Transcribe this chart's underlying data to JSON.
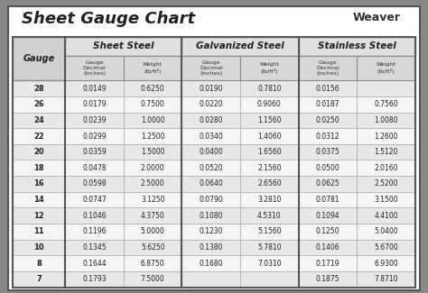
{
  "title": "Sheet Gauge Chart",
  "background_outer": "#888888",
  "background_inner": "#ffffff",
  "gauges": [
    28,
    26,
    24,
    22,
    20,
    18,
    16,
    14,
    12,
    11,
    10,
    8,
    7
  ],
  "sheet_steel": [
    [
      "0.0149",
      "0.6250"
    ],
    [
      "0.0179",
      "0.7500"
    ],
    [
      "0.0239",
      "1.0000"
    ],
    [
      "0.0299",
      "1.2500"
    ],
    [
      "0.0359",
      "1.5000"
    ],
    [
      "0.0478",
      "2.0000"
    ],
    [
      "0.0598",
      "2.5000"
    ],
    [
      "0.0747",
      "3.1250"
    ],
    [
      "0.1046",
      "4.3750"
    ],
    [
      "0.1196",
      "5.0000"
    ],
    [
      "0.1345",
      "5.6250"
    ],
    [
      "0.1644",
      "6.8750"
    ],
    [
      "0.1793",
      "7.5000"
    ]
  ],
  "galvanized_steel": [
    [
      "0.0190",
      "0.7810"
    ],
    [
      "0.0220",
      "0.9060"
    ],
    [
      "0.0280",
      "1.1560"
    ],
    [
      "0.0340",
      "1.4060"
    ],
    [
      "0.0400",
      "1.6560"
    ],
    [
      "0.0520",
      "2.1560"
    ],
    [
      "0.0640",
      "2.6560"
    ],
    [
      "0.0790",
      "3.2810"
    ],
    [
      "0.1080",
      "4.5310"
    ],
    [
      "0.1230",
      "5.1560"
    ],
    [
      "0.1380",
      "5.7810"
    ],
    [
      "0.1680",
      "7.0310"
    ],
    [
      "",
      ""
    ]
  ],
  "stainless_steel": [
    [
      "0.0156",
      ""
    ],
    [
      "0.0187",
      "0.7560"
    ],
    [
      "0.0250",
      "1.0080"
    ],
    [
      "0.0312",
      "1.2600"
    ],
    [
      "0.0375",
      "1.5120"
    ],
    [
      "0.0500",
      "2.0160"
    ],
    [
      "0.0625",
      "2.5200"
    ],
    [
      "0.0781",
      "3.1500"
    ],
    [
      "0.1094",
      "4.4100"
    ],
    [
      "0.1250",
      "5.0400"
    ],
    [
      "0.1406",
      "5.6700"
    ],
    [
      "0.1719",
      "6.9300"
    ],
    [
      "0.1875",
      "7.8710"
    ]
  ]
}
